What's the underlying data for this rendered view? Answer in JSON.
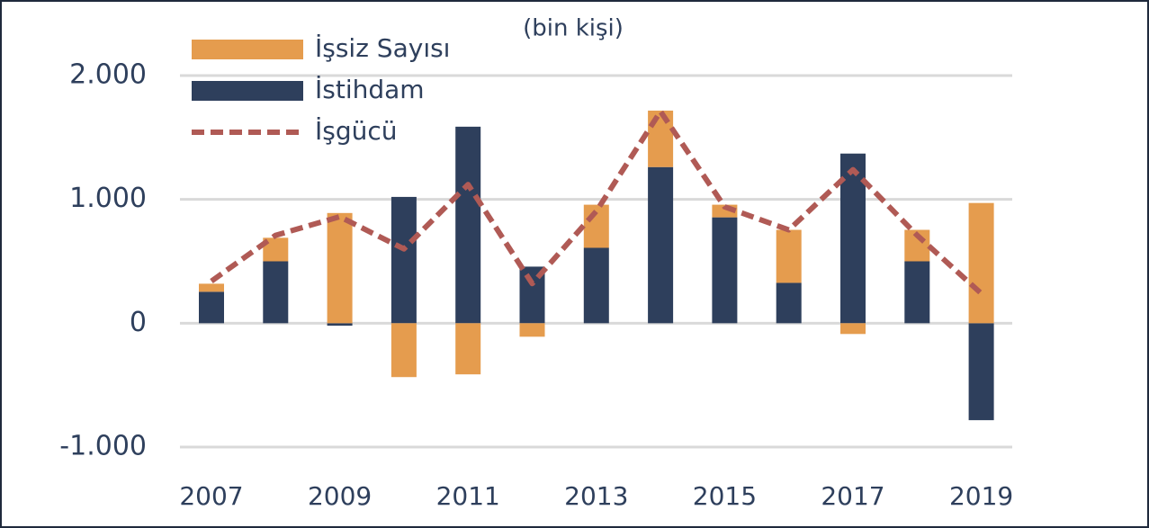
{
  "chart_data": {
    "type": "bar",
    "stacked": true,
    "subtitle": "(bin kişi)",
    "categories": [
      "2007",
      null,
      "2009",
      null,
      "2011",
      null,
      "2013",
      null,
      "2015",
      null,
      "2017",
      null,
      "2019"
    ],
    "series": [
      {
        "name": "İşsiz Sayısı",
        "color": "#E59C4E",
        "values": [
          65,
          190,
          890,
          -435,
          -413,
          -109,
          348,
          456,
          102,
          428,
          -87,
          254,
          971
        ]
      },
      {
        "name": "İstihdam",
        "color": "#2E3F5C",
        "values": [
          254,
          500,
          -20,
          1020,
          1587,
          457,
          609,
          1261,
          855,
          326,
          1370,
          500,
          -783
        ]
      },
      {
        "name": "İşgücü",
        "type": "line",
        "color": "#B05A55",
        "values": [
          340,
          710,
          860,
          600,
          1120,
          320,
          905,
          1710,
          940,
          754,
          1240,
          710,
          240
        ]
      }
    ],
    "ylim": [
      -1000,
      2000
    ],
    "yticks": [
      {
        "value": -1000,
        "label": "-1.000"
      },
      0,
      {
        "value": 1000,
        "label": "1.000"
      },
      {
        "value": 2000,
        "label": "2.000"
      }
    ],
    "grid": true,
    "legend": "top-left"
  }
}
